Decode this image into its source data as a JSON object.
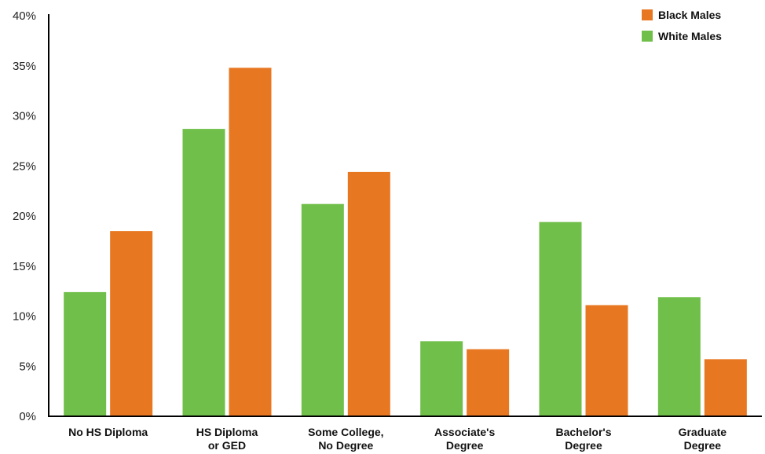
{
  "chart_data": {
    "type": "bar",
    "categories": [
      [
        "No HS Diploma"
      ],
      [
        "HS Diploma",
        "or GED"
      ],
      [
        "Some College,",
        "No Degree"
      ],
      [
        "Associate's",
        "Degree"
      ],
      [
        "Bachelor's",
        "Degree"
      ],
      [
        "Graduate",
        "Degree"
      ]
    ],
    "series": [
      {
        "name": "White Males",
        "color": "#70bf4a",
        "values": [
          12.4,
          28.7,
          21.2,
          7.5,
          19.4,
          11.9
        ]
      },
      {
        "name": "Black Males",
        "color": "#e87722",
        "values": [
          18.5,
          34.8,
          24.4,
          6.7,
          11.1,
          5.7
        ]
      }
    ],
    "yticks": [
      "0%",
      "5%",
      "10%",
      "15%",
      "20%",
      "25%",
      "30%",
      "35%",
      "40%"
    ],
    "ylim": [
      0,
      40
    ],
    "legend": {
      "position": "top-right",
      "order": [
        "Black Males",
        "White Males"
      ]
    },
    "grid": false
  }
}
